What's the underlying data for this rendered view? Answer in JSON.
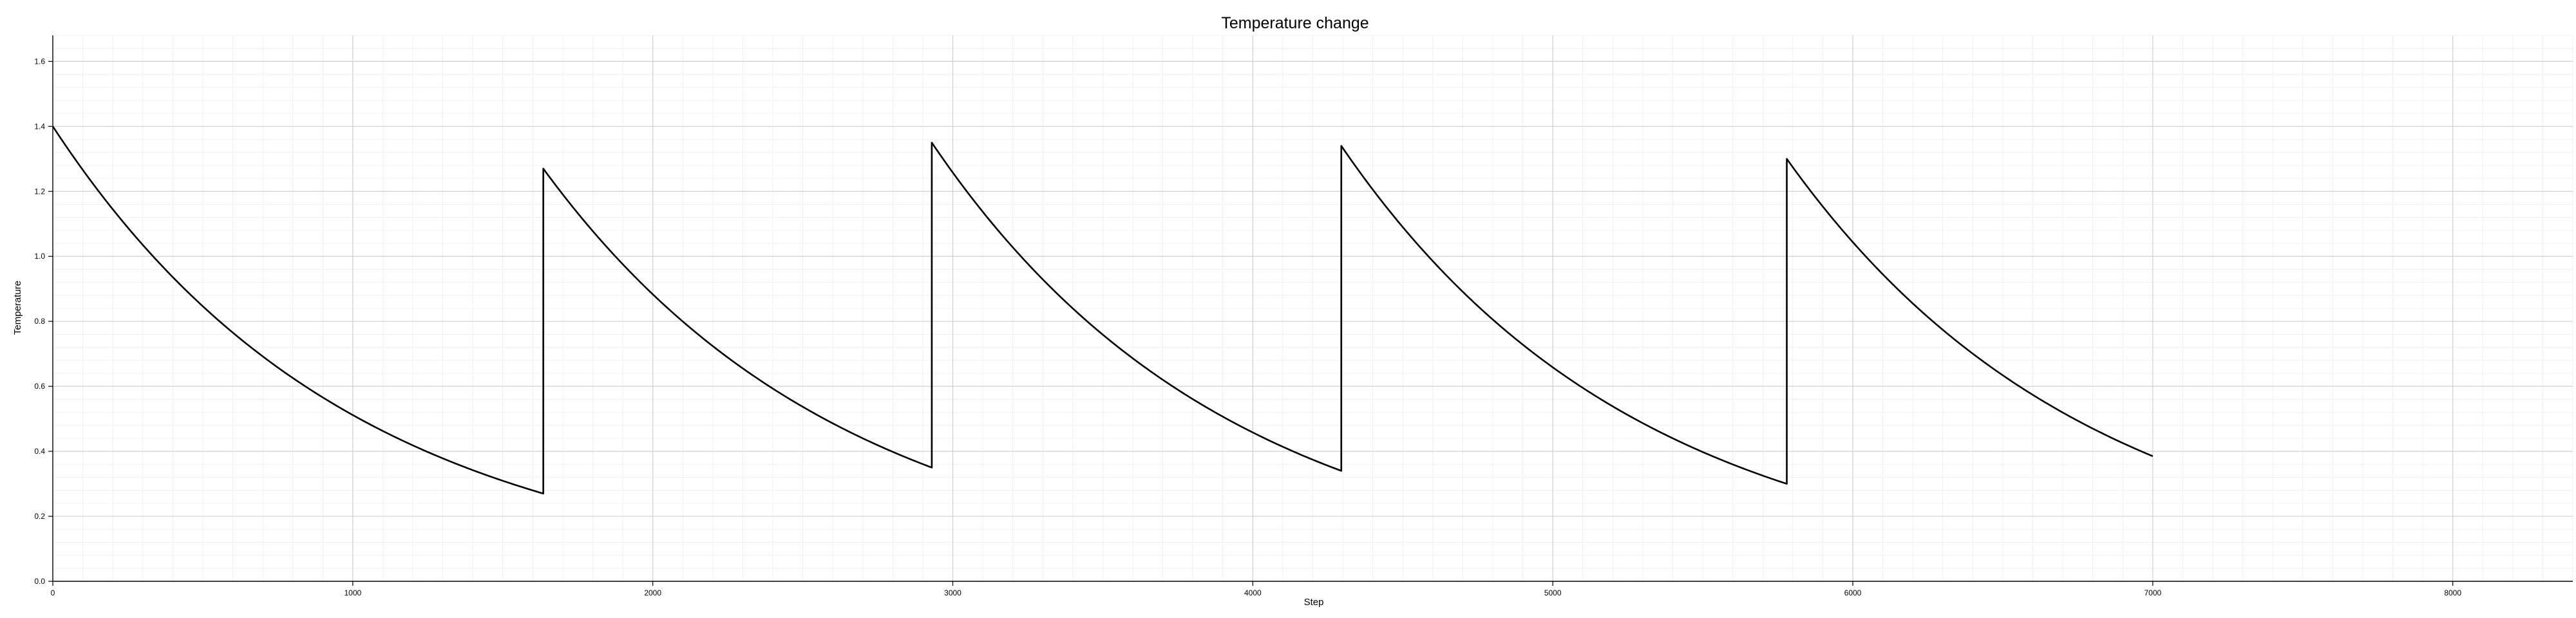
{
  "chart_data": {
    "type": "line",
    "title": "Temperature change",
    "xlabel": "Step",
    "ylabel": "Temperature",
    "xlim": [
      0,
      8400
    ],
    "ylim": [
      0,
      1.68
    ],
    "xticks": [
      0,
      1000,
      2000,
      3000,
      4000,
      5000,
      6000,
      7000,
      8000
    ],
    "yticks": [
      0.0,
      0.2,
      0.4,
      0.6,
      0.8,
      1.0,
      1.2,
      1.4,
      1.6
    ],
    "xtick_labels": [
      "0",
      "1000",
      "2000",
      "3000",
      "4000",
      "5000",
      "6000",
      "7000",
      "8000"
    ],
    "ytick_labels": [
      "0.0",
      "0.2",
      "0.4",
      "0.6",
      "0.8",
      "1.0",
      "1.2",
      "1.4",
      "1.6"
    ],
    "grid": true,
    "minor_grid": true,
    "line_color": "#000000",
    "segments": [
      {
        "x_start": 0,
        "x_end": 1635,
        "y_start": 1.4,
        "y_end": 0.27
      },
      {
        "x_start": 1635,
        "x_end": 2930,
        "y_start": 1.27,
        "y_end": 0.35
      },
      {
        "x_start": 2930,
        "x_end": 4295,
        "y_start": 1.35,
        "y_end": 0.34
      },
      {
        "x_start": 4295,
        "x_end": 5780,
        "y_start": 1.34,
        "y_end": 0.3
      },
      {
        "x_start": 5780,
        "x_end": 7000,
        "y_start": 1.3,
        "y_end": 0.385
      }
    ]
  }
}
